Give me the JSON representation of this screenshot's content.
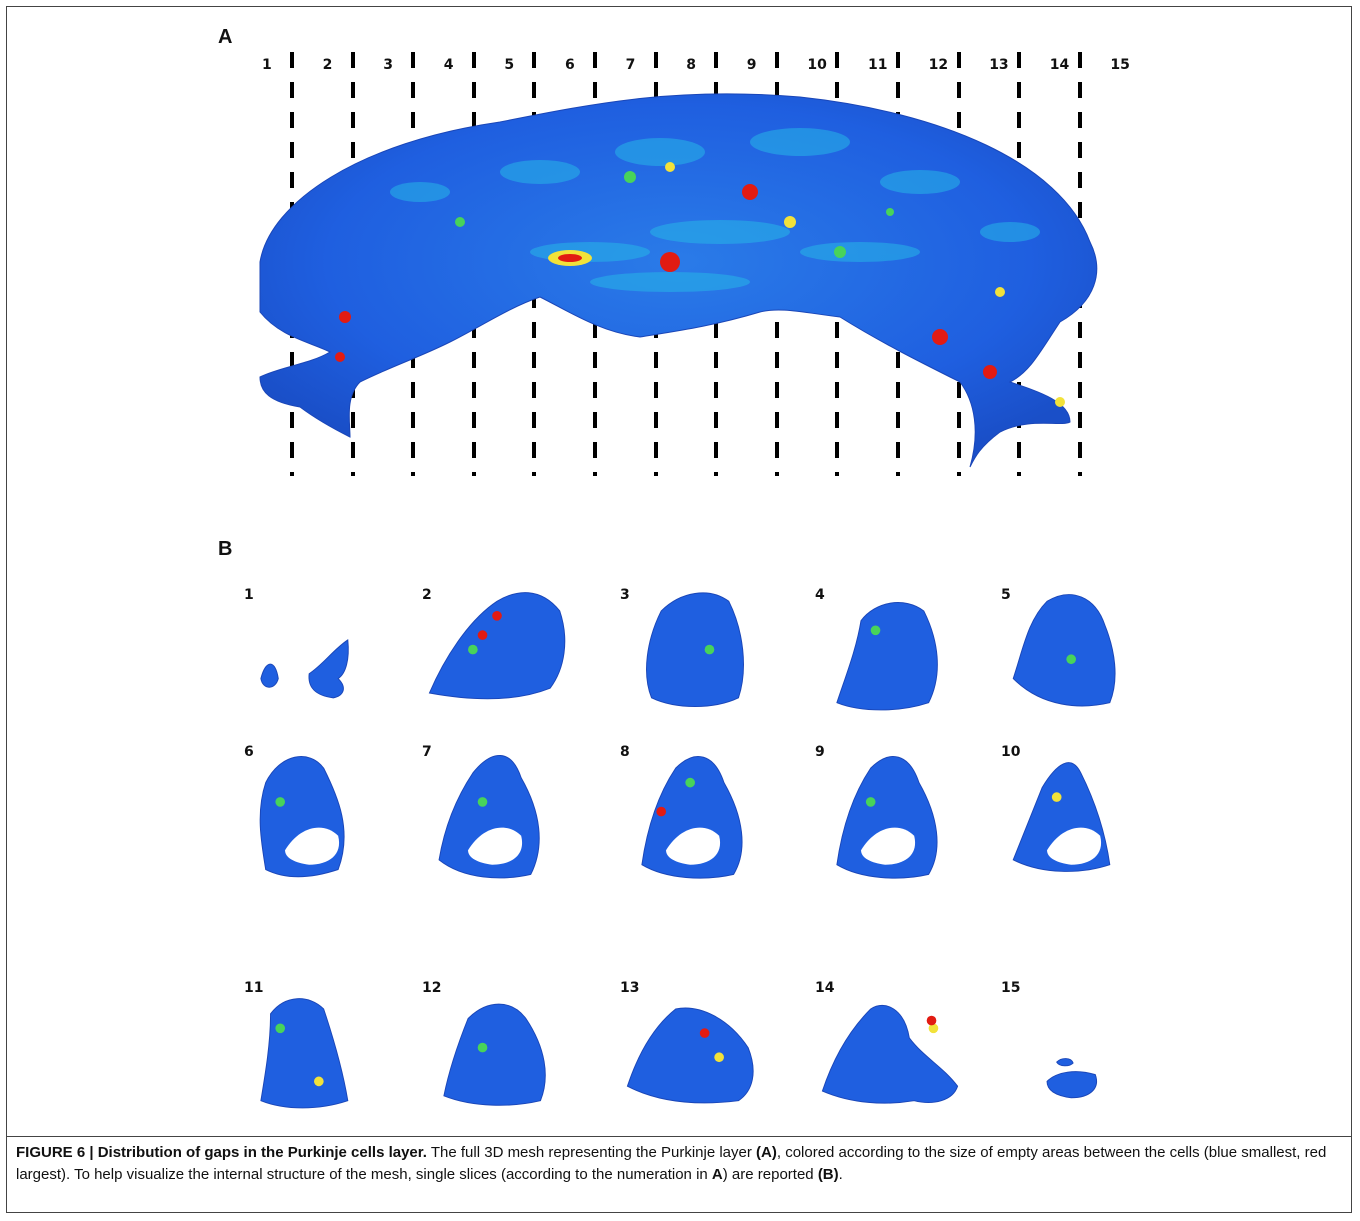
{
  "panel_a": {
    "label": "A",
    "numbers": [
      "1",
      "2",
      "3",
      "4",
      "5",
      "6",
      "7",
      "8",
      "9",
      "10",
      "11",
      "12",
      "13",
      "14",
      "15"
    ]
  },
  "panel_b": {
    "label": "B",
    "slices": [
      "1",
      "2",
      "3",
      "4",
      "5",
      "6",
      "7",
      "8",
      "9",
      "10",
      "11",
      "12",
      "13",
      "14",
      "15"
    ]
  },
  "caption": {
    "heading": "FIGURE 6 | Distribution of gaps in the Purkinje cells layer.",
    "text_1": " The full 3D mesh representing the Purkinje layer ",
    "ref_a1": "(A)",
    "text_2": ", colored according to the size of empty areas between the cells (blue smallest, red largest). To help visualize the internal structure of the mesh, single slices (according to the numeration in ",
    "ref_a2": "A",
    "text_3": ") are reported ",
    "ref_b": "(B)",
    "text_4": "."
  },
  "colors": {
    "mesh_blue": "#1f5fe0",
    "mesh_cyan": "#27b6e8",
    "mesh_green": "#48d35a",
    "mesh_yellow": "#f2e23a",
    "mesh_red": "#e21b12"
  }
}
